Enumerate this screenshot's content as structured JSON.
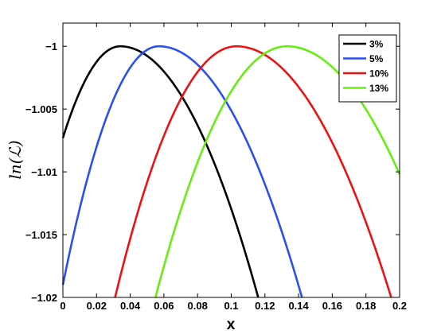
{
  "chart_data": {
    "type": "line",
    "title": "",
    "xlabel": "x",
    "ylabel": "ln(ℒ)",
    "xlim": [
      0,
      0.2
    ],
    "ylim": [
      -1.02,
      -0.998
    ],
    "xticks": [
      0,
      0.02,
      0.04,
      0.06,
      0.08,
      0.1,
      0.12,
      0.14,
      0.16,
      0.18,
      0.2
    ],
    "xtick_labels": [
      "0",
      "0.02",
      "0.04",
      "0.06",
      "0.08",
      "0.1",
      "0.12",
      "0.14",
      "0.16",
      "0.18",
      "0.2"
    ],
    "yticks": [
      -1.02,
      -1.015,
      -1.01,
      -1.005,
      -1
    ],
    "ytick_labels": [
      "−1.02",
      "−1.015",
      "−1.01",
      "−1.005",
      "−1"
    ],
    "grid": false,
    "legend_position": "top-right",
    "series": [
      {
        "name": "3%",
        "color": "#000000",
        "peak_x": 0.034,
        "x_start": 0.0,
        "x_end": 0.116,
        "x": [
          0.0,
          0.005,
          0.01,
          0.02,
          0.034,
          0.05,
          0.06,
          0.08,
          0.1,
          0.116
        ],
        "y": [
          -1.0073,
          -1.0043,
          -1.0024,
          -1.0005,
          -1.0,
          -1.0013,
          -1.0031,
          -1.008,
          -1.0141,
          -1.02
        ]
      },
      {
        "name": "5%",
        "color": "#2a4ff2",
        "peak_x": 0.057,
        "x_start": 0.0,
        "x_end": 0.142,
        "x": [
          0.0,
          0.004,
          0.01,
          0.02,
          0.03,
          0.04,
          0.057,
          0.08,
          0.1,
          0.12,
          0.142
        ],
        "y": [
          -1.019,
          -1.0135,
          -1.0085,
          -1.0043,
          -1.0019,
          -1.0006,
          -1.0,
          -1.0017,
          -1.0049,
          -1.0104,
          -1.02
        ]
      },
      {
        "name": "10%",
        "color": "#ee1111",
        "peak_x": 0.103,
        "x_start": 0.031,
        "x_end": 0.195,
        "x": [
          0.031,
          0.04,
          0.06,
          0.08,
          0.103,
          0.12,
          0.14,
          0.16,
          0.18,
          0.195
        ],
        "y": [
          -1.02,
          -1.015,
          -1.0067,
          -1.0017,
          -1.0,
          -1.0008,
          -1.0034,
          -1.0082,
          -1.0148,
          -1.02
        ]
      },
      {
        "name": "13%",
        "color": "#66ee11",
        "peak_x": 0.133,
        "x_start": 0.055,
        "x_end": 0.2,
        "x": [
          0.055,
          0.07,
          0.09,
          0.11,
          0.133,
          0.15,
          0.17,
          0.19,
          0.2
        ],
        "y": [
          -1.02,
          -1.0125,
          -1.0052,
          -1.0011,
          -1.0,
          -1.0007,
          -1.0037,
          -1.0076,
          -1.0102
        ]
      }
    ]
  }
}
